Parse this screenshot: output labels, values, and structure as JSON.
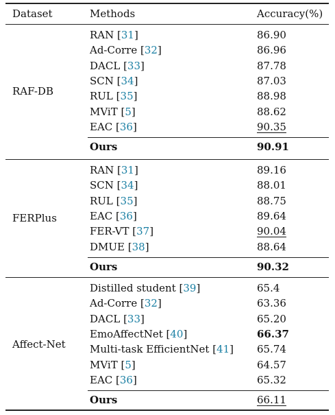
{
  "table": {
    "headers": {
      "dataset": "Dataset",
      "methods": "Methods",
      "accuracy": "Accuracy(%)"
    },
    "groups": [
      {
        "dataset": "RAF-DB",
        "rows": [
          {
            "method": "RAN",
            "ref": "31",
            "accuracy": "86.90"
          },
          {
            "method": "Ad-Corre",
            "ref": "32",
            "accuracy": "86.96"
          },
          {
            "method": "DACL",
            "ref": "33",
            "accuracy": "87.78"
          },
          {
            "method": "SCN",
            "ref": "34",
            "accuracy": "87.03"
          },
          {
            "method": "RUL",
            "ref": "35",
            "accuracy": "88.98"
          },
          {
            "method": "MViT",
            "ref": "5",
            "accuracy": "88.62"
          },
          {
            "method": "EAC",
            "ref": "36",
            "accuracy": "90.35"
          }
        ],
        "ours": {
          "method": "Ours",
          "accuracy": "90.91"
        }
      },
      {
        "dataset": "FERPlus",
        "rows": [
          {
            "method": "RAN",
            "ref": "31",
            "accuracy": "89.16"
          },
          {
            "method": "SCN",
            "ref": "34",
            "accuracy": "88.01"
          },
          {
            "method": "RUL",
            "ref": "35",
            "accuracy": "88.75"
          },
          {
            "method": "EAC",
            "ref": "36",
            "accuracy": "89.64"
          },
          {
            "method": "FER-VT",
            "ref": "37",
            "accuracy": "90.04"
          },
          {
            "method": "DMUE",
            "ref": "38",
            "accuracy": "88.64"
          }
        ],
        "ours": {
          "method": "Ours",
          "accuracy": "90.32"
        }
      },
      {
        "dataset": "Affect-Net",
        "rows": [
          {
            "method": "Distilled student",
            "ref": "39",
            "accuracy": "65.4"
          },
          {
            "method": "Ad-Corre",
            "ref": "32",
            "accuracy": "63.36"
          },
          {
            "method": "DACL",
            "ref": "33",
            "accuracy": "65.20"
          },
          {
            "method": "EmoAffectNet",
            "ref": "40",
            "accuracy": "66.37"
          },
          {
            "method": "Multi-task EfficientNet",
            "ref": "41",
            "accuracy": "65.74"
          },
          {
            "method": "MViT",
            "ref": "5",
            "accuracy": "64.57"
          },
          {
            "method": "EAC",
            "ref": "36",
            "accuracy": "65.32"
          }
        ],
        "ours": {
          "method": "Ours",
          "accuracy": "66.11"
        }
      }
    ],
    "emphasis": {
      "RAF-DB": {
        "bold": "90.91",
        "underline": "90.35"
      },
      "FERPlus": {
        "bold": "90.32",
        "underline": "90.04"
      },
      "Affect-Net": {
        "bold": "66.37",
        "underline": "66.11"
      }
    }
  }
}
